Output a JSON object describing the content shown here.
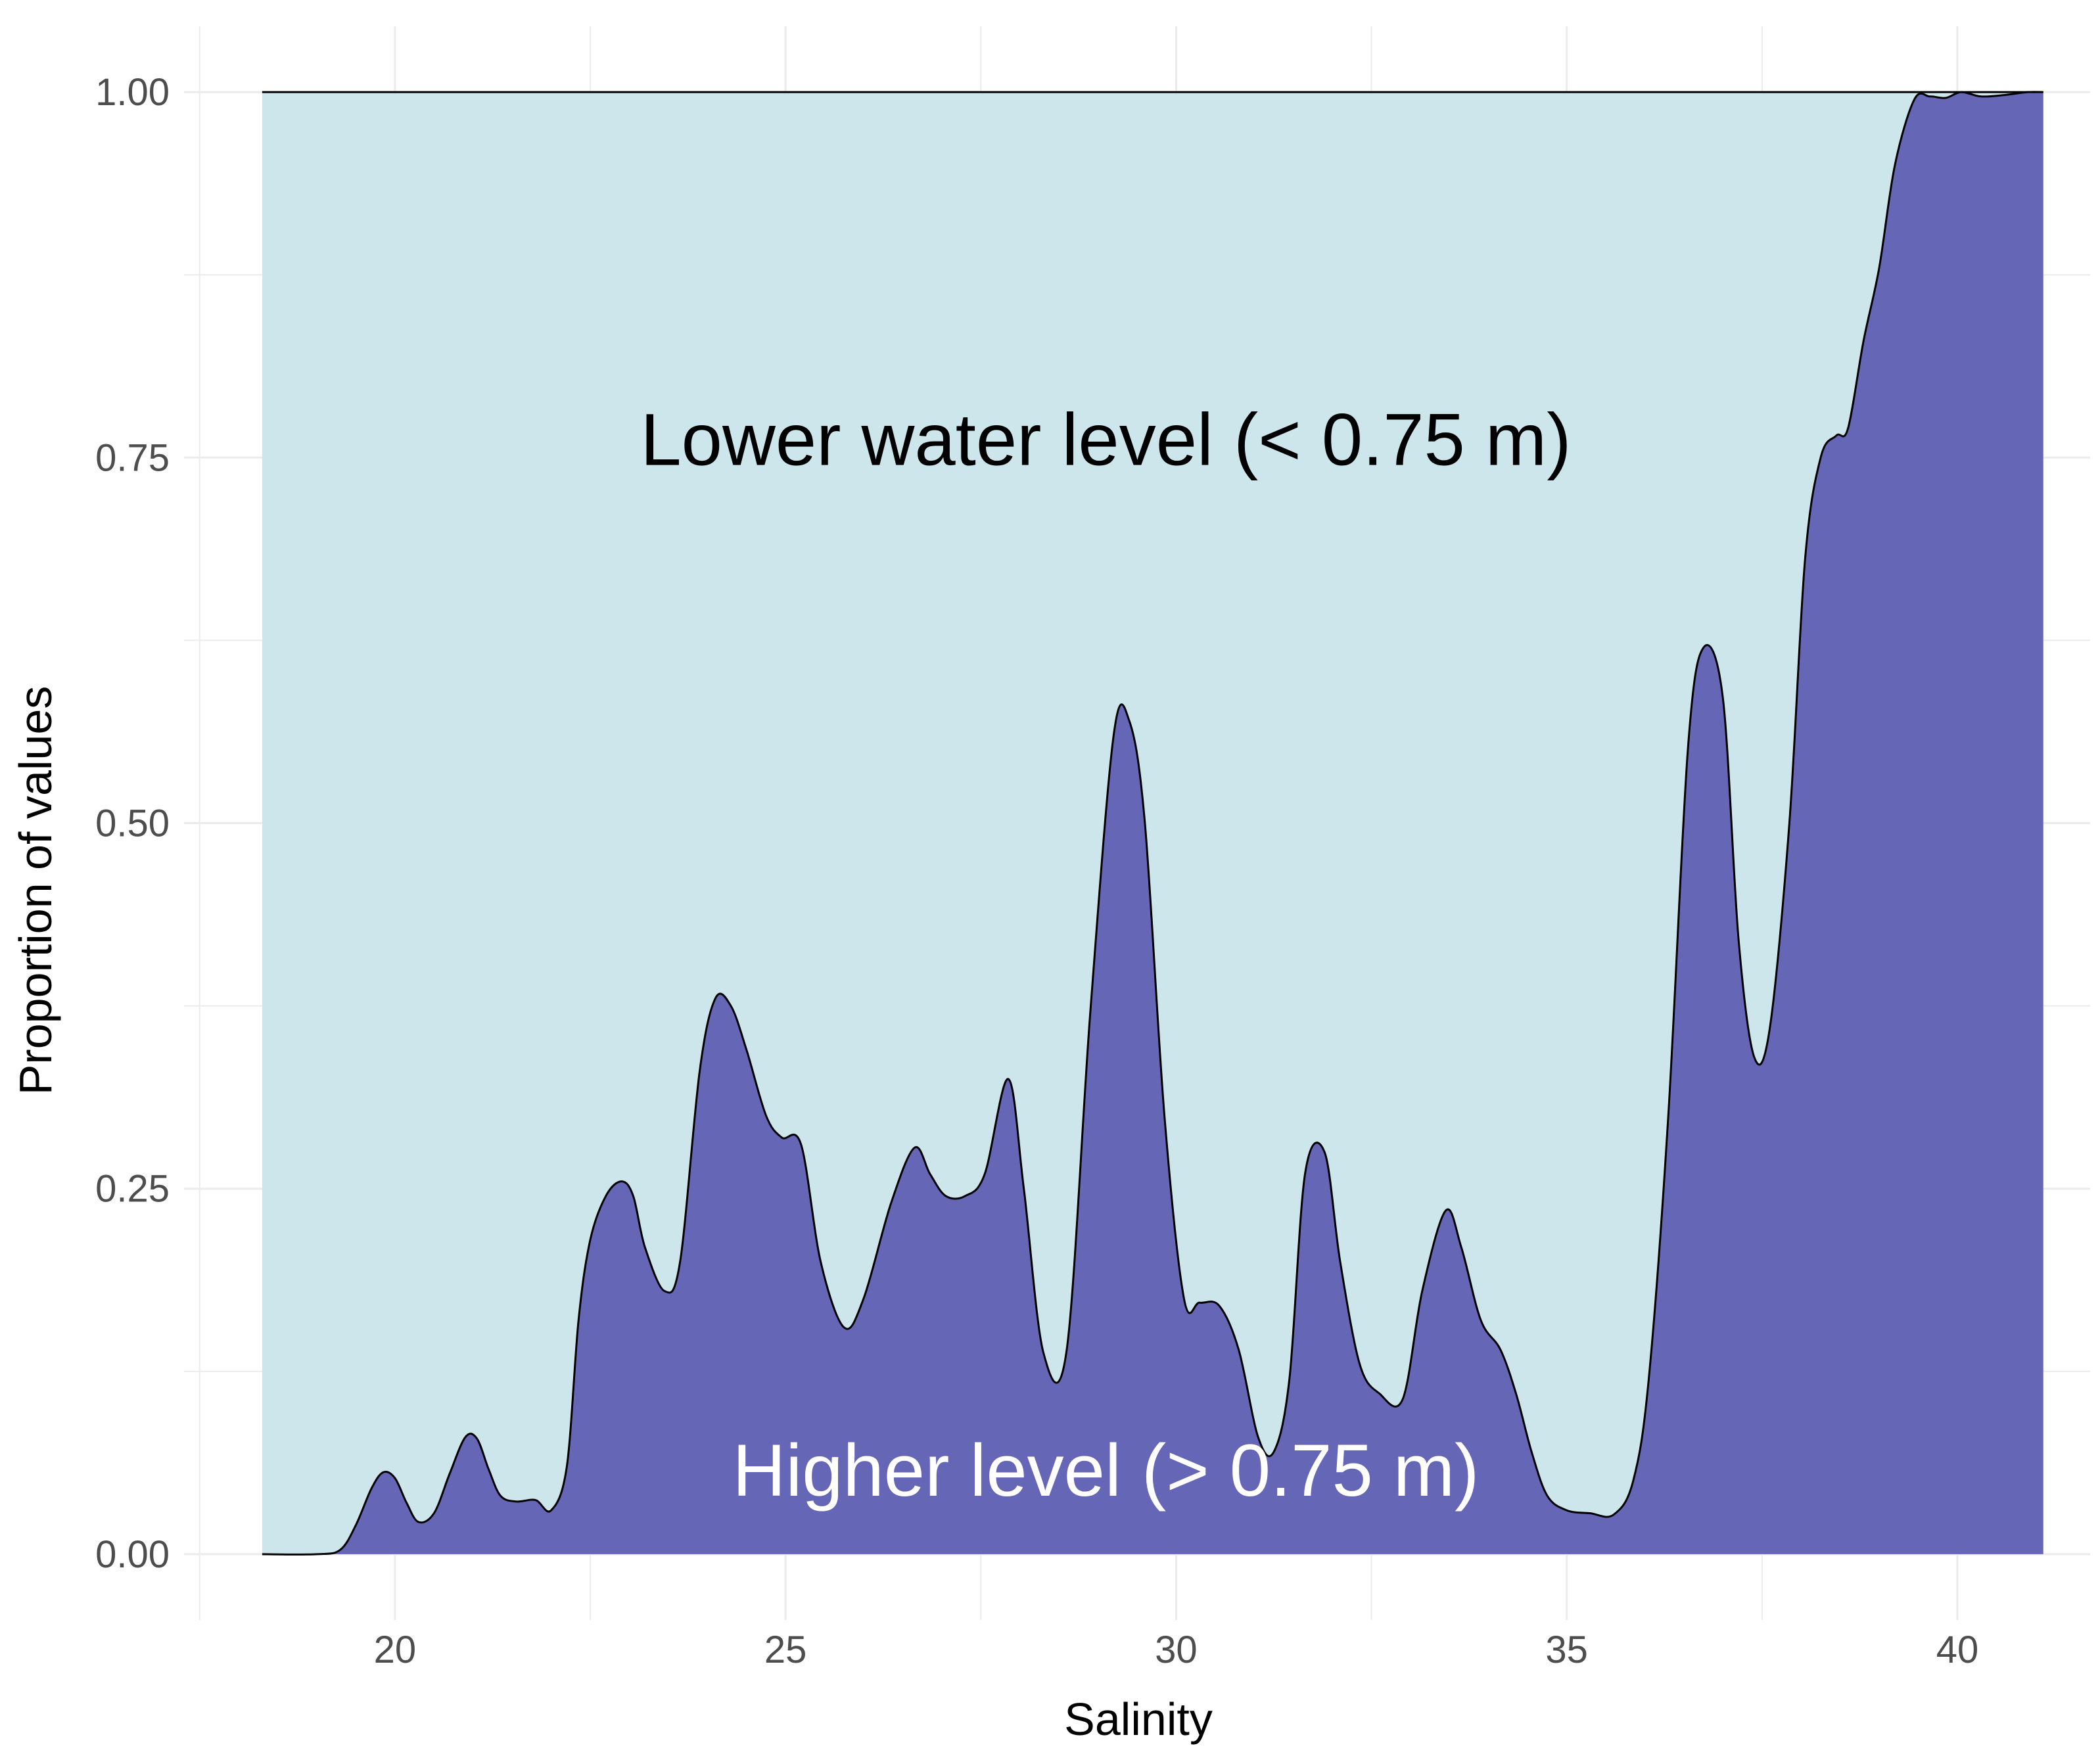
{
  "chart_data": {
    "type": "area",
    "title": "",
    "xlabel": "Salinity",
    "ylabel": "Proportion of values",
    "xlim": [
      17.3,
      41.7
    ],
    "ylim": [
      -0.045,
      1.045
    ],
    "x_ticks": [
      20,
      25,
      30,
      35,
      40
    ],
    "x_tick_labels": [
      "20",
      "25",
      "30",
      "35",
      "40"
    ],
    "y_ticks": [
      0,
      0.25,
      0.5,
      0.75,
      1
    ],
    "y_tick_labels": [
      "0.00",
      "0.25",
      "0.50",
      "0.75",
      "1.00"
    ],
    "grid": true,
    "legend": "none",
    "colors": {
      "upper_fill": "#cde6ec",
      "lower_fill": "#6566b6",
      "outline": "#000000",
      "grid": "#ebebeb"
    },
    "annotations": [
      {
        "text": "Lower water level (< 0.75 m)",
        "x": 29.1,
        "y": 0.745,
        "color": "#000000"
      },
      {
        "text": "Higher level (> 0.75 m)",
        "x": 29.1,
        "y": 0.04,
        "color": "#ffffff"
      }
    ],
    "series": [
      {
        "name": "Lower water level (< 0.75 m)",
        "x": [
          18.3,
          41.1
        ],
        "y": [
          1,
          1
        ]
      },
      {
        "name": "Higher level (> 0.75 m)",
        "x": [
          18.3,
          19.0,
          19.3,
          19.5,
          19.7,
          19.85,
          20.0,
          20.15,
          20.3,
          20.5,
          20.7,
          20.9,
          21.05,
          21.2,
          21.35,
          21.55,
          21.8,
          22.0,
          22.2,
          22.35,
          22.5,
          22.7,
          22.9,
          23.05,
          23.2,
          23.45,
          23.65,
          23.9,
          24.1,
          24.3,
          24.5,
          24.75,
          24.95,
          25.2,
          25.45,
          25.75,
          26.0,
          26.35,
          26.65,
          26.85,
          27.05,
          27.3,
          27.55,
          27.85,
          28.05,
          28.3,
          28.6,
          28.9,
          29.2,
          29.4,
          29.6,
          29.85,
          30.1,
          30.3,
          30.55,
          30.8,
          31.05,
          31.25,
          31.45,
          31.65,
          31.9,
          32.1,
          32.35,
          32.6,
          32.9,
          33.15,
          33.45,
          33.65,
          33.9,
          34.15,
          34.35,
          34.55,
          34.75,
          35.0,
          35.3,
          35.6,
          35.85,
          36.05,
          36.3,
          36.55,
          36.75,
          37.0,
          37.2,
          37.4,
          37.6,
          37.85,
          38.05,
          38.25,
          38.45,
          38.6,
          38.8,
          39.0,
          39.2,
          39.45,
          39.65,
          39.85,
          40.05,
          40.3,
          40.6,
          40.9,
          41.1
        ],
        "y": [
          0,
          0,
          0.003,
          0.02,
          0.045,
          0.056,
          0.052,
          0.035,
          0.022,
          0.028,
          0.055,
          0.08,
          0.079,
          0.058,
          0.04,
          0.036,
          0.037,
          0.03,
          0.06,
          0.16,
          0.215,
          0.245,
          0.255,
          0.245,
          0.21,
          0.18,
          0.2,
          0.33,
          0.38,
          0.375,
          0.345,
          0.3,
          0.285,
          0.28,
          0.2,
          0.155,
          0.175,
          0.24,
          0.278,
          0.26,
          0.245,
          0.245,
          0.26,
          0.325,
          0.25,
          0.138,
          0.14,
          0.37,
          0.56,
          0.57,
          0.5,
          0.3,
          0.175,
          0.172,
          0.17,
          0.14,
          0.08,
          0.07,
          0.12,
          0.26,
          0.275,
          0.2,
          0.13,
          0.11,
          0.106,
          0.18,
          0.235,
          0.21,
          0.16,
          0.14,
          0.11,
          0.07,
          0.04,
          0.03,
          0.028,
          0.027,
          0.05,
          0.12,
          0.3,
          0.55,
          0.62,
          0.585,
          0.42,
          0.34,
          0.36,
          0.5,
          0.68,
          0.75,
          0.765,
          0.77,
          0.83,
          0.88,
          0.95,
          0.995,
          0.997,
          0.996,
          1.0,
          0.997,
          0.998,
          1.0,
          1.0
        ]
      }
    ]
  }
}
